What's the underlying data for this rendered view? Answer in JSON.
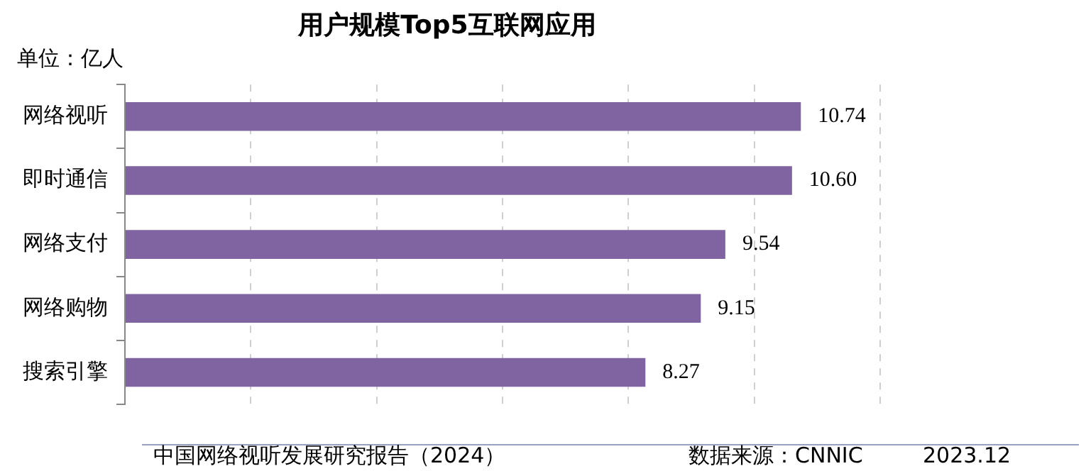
{
  "chart_data": {
    "type": "bar",
    "orientation": "horizontal",
    "title": "用户规模Top5互联网应用",
    "categories": [
      "网络视听",
      "即时通信",
      "网络支付",
      "网络购物",
      "搜索引擎"
    ],
    "values": [
      10.74,
      10.6,
      9.54,
      9.15,
      8.27
    ],
    "color": "#8064a2",
    "xlim": [
      0,
      12
    ],
    "xticks": [
      {
        "value": 0,
        "label": null
      },
      {
        "value": 2,
        "label": null
      },
      {
        "value": 4,
        "label": null
      },
      {
        "value": 6,
        "label": null
      },
      {
        "value": 8,
        "label": null
      },
      {
        "value": 10,
        "label": null
      },
      {
        "value": 12,
        "label": null
      }
    ],
    "grid": "x",
    "legend": false,
    "data_labels": true,
    "value_labels": [
      "10.74",
      "10.60",
      "9.54",
      "9.15",
      "8.27"
    ],
    "annotations": [
      "单位：亿人",
      "中国网络视听发展研究报告（2024）",
      "数据来源：CNNIC",
      "2023.12"
    ]
  }
}
